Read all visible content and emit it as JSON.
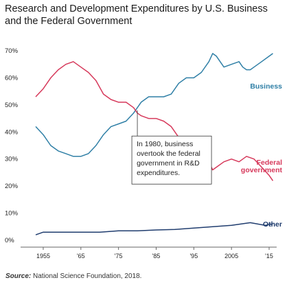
{
  "chart_data": {
    "type": "line",
    "title": "Research and Development Expenditures by U.S. Business and the Federal Government",
    "source_label": "Source:",
    "source_text": "National Science Foundation, 2018.",
    "ylim": [
      0,
      70
    ],
    "y_ticks": [
      "0%",
      "10%",
      "20%",
      "30%",
      "40%",
      "50%",
      "60%",
      "70%"
    ],
    "x_ticks": [
      {
        "year": 1955,
        "label": "1955"
      },
      {
        "year": 1965,
        "label": "'65"
      },
      {
        "year": 1975,
        "label": "'75"
      },
      {
        "year": 1985,
        "label": "'85"
      },
      {
        "year": 1995,
        "label": "'95"
      },
      {
        "year": 2005,
        "label": "2005"
      },
      {
        "year": 2015,
        "label": "'15"
      }
    ],
    "xlim": [
      1953,
      2017
    ],
    "grid": false,
    "annotation": {
      "lines": [
        "In 1980, business",
        "overtook the federal",
        "government in R&D",
        "expenditures."
      ],
      "year": 1980
    },
    "series": [
      {
        "name": "Business",
        "label_lines": [
          "Business"
        ],
        "color": "#2f7fa6",
        "x": [
          1953,
          1955,
          1957,
          1959,
          1961,
          1963,
          1965,
          1967,
          1969,
          1971,
          1973,
          1975,
          1977,
          1979,
          1980,
          1981,
          1983,
          1985,
          1987,
          1989,
          1991,
          1993,
          1995,
          1997,
          1999,
          2000,
          2001,
          2002,
          2003,
          2005,
          2007,
          2008,
          2009,
          2010,
          2011,
          2013,
          2015,
          2016
        ],
        "values": [
          42,
          39,
          35,
          33,
          32,
          31,
          31,
          32,
          35,
          39,
          42,
          43,
          44,
          47,
          49,
          51,
          53,
          53,
          53,
          54,
          58,
          60,
          60,
          62,
          66,
          69,
          68,
          66,
          64,
          65,
          66,
          64,
          63,
          63,
          64,
          66,
          68,
          69
        ]
      },
      {
        "name": "Federal government",
        "label_lines": [
          "Federal",
          "government"
        ],
        "color": "#d6385a",
        "x": [
          1953,
          1955,
          1957,
          1959,
          1961,
          1963,
          1965,
          1967,
          1969,
          1971,
          1973,
          1975,
          1977,
          1979,
          1980,
          1981,
          1983,
          1985,
          1987,
          1989,
          1991,
          1993,
          1995,
          1997,
          1999,
          2000,
          2001,
          2003,
          2005,
          2007,
          2009,
          2011,
          2013,
          2015,
          2016
        ],
        "values": [
          53,
          56,
          60,
          63,
          65,
          66,
          64,
          62,
          59,
          54,
          52,
          51,
          51,
          49,
          47,
          46,
          45,
          45,
          44,
          42,
          38,
          36,
          35,
          32,
          29,
          26,
          27,
          29,
          30,
          29,
          31,
          30,
          27,
          24,
          22
        ]
      },
      {
        "name": "Other",
        "label_lines": [
          "Other"
        ],
        "color": "#1f3c6e",
        "x": [
          1953,
          1955,
          1960,
          1965,
          1970,
          1975,
          1980,
          1985,
          1990,
          1995,
          2000,
          2005,
          2010,
          2014,
          2016
        ],
        "values": [
          2,
          3,
          3,
          3,
          3,
          3.5,
          3.5,
          3.8,
          4,
          4.5,
          5,
          5.5,
          6.5,
          5.5,
          6
        ]
      }
    ]
  }
}
